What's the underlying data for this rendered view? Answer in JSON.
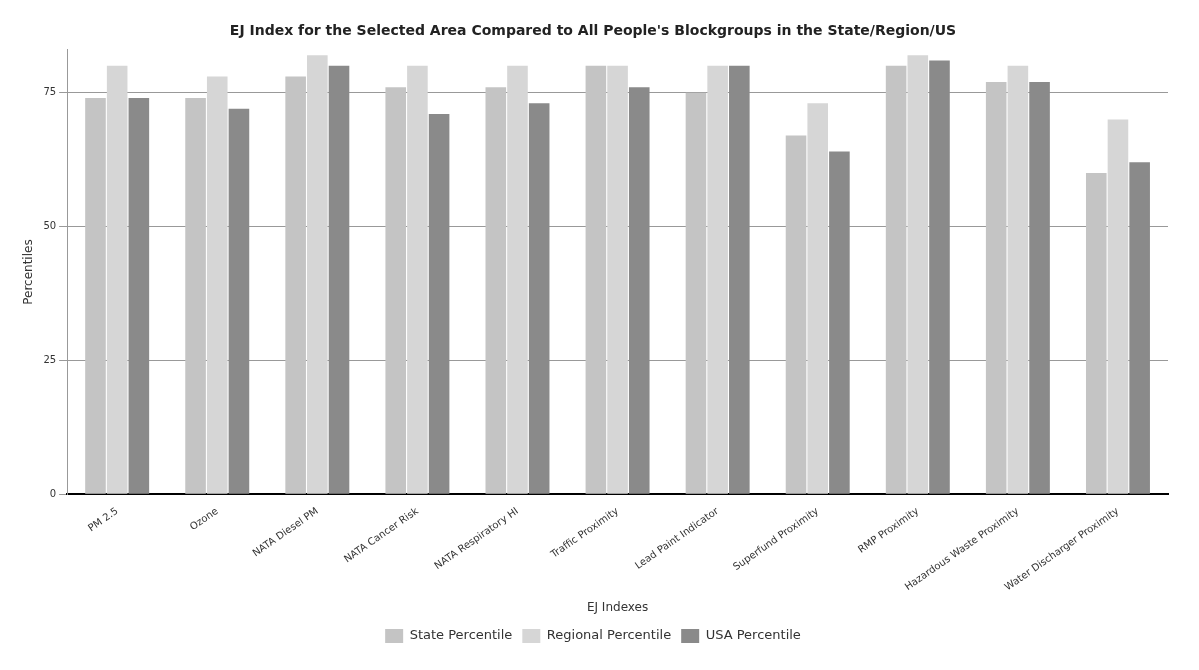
{
  "chart_data": {
    "type": "bar",
    "title": "EJ Index for the Selected Area Compared to All People's Blockgroups in the State/Region/US",
    "xlabel": "EJ Indexes",
    "ylabel": "Percentiles",
    "categories": [
      "PM 2.5",
      "Ozone",
      "NATA Diesel PM",
      "NATA Cancer Risk",
      "NATA Respiratory HI",
      "Traffic Proximity",
      "Lead Paint Indicator",
      "Superfund Proximity",
      "RMP Proximity",
      "Hazardous Waste Proximity",
      "Water Discharger Proximity"
    ],
    "series": [
      {
        "name": "State Percentile",
        "color": "#c4c4c4",
        "values": [
          74,
          74,
          78,
          76,
          76,
          80,
          75,
          67,
          80,
          77,
          60
        ]
      },
      {
        "name": "Regional Percentile",
        "color": "#d6d6d6",
        "values": [
          80,
          78,
          82,
          80,
          80,
          80,
          80,
          73,
          82,
          80,
          70
        ]
      },
      {
        "name": "USA Percentile",
        "color": "#8a8a8a",
        "values": [
          74,
          72,
          80,
          71,
          73,
          76,
          80,
          64,
          81,
          77,
          62
        ]
      }
    ],
    "ylim": [
      0,
      83
    ],
    "yticks": [
      0,
      25,
      50,
      75
    ],
    "grid": "y",
    "legend": "bottom"
  }
}
